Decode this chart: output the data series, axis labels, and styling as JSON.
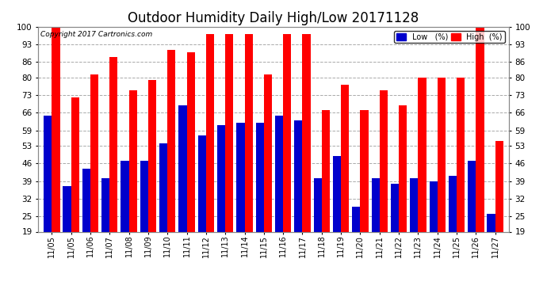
{
  "title": "Outdoor Humidity Daily High/Low 20171128",
  "copyright": "Copyright 2017 Cartronics.com",
  "labels": [
    "11/05",
    "11/05",
    "11/06",
    "11/07",
    "11/08",
    "11/09",
    "11/10",
    "11/11",
    "11/12",
    "11/13",
    "11/14",
    "11/15",
    "11/16",
    "11/17",
    "11/18",
    "11/19",
    "11/20",
    "11/21",
    "11/22",
    "11/23",
    "11/24",
    "11/25",
    "11/26",
    "11/27"
  ],
  "high": [
    100,
    72,
    81,
    88,
    75,
    79,
    91,
    90,
    97,
    97,
    97,
    81,
    97,
    97,
    67,
    77,
    67,
    75,
    69,
    80,
    80,
    80,
    100,
    55
  ],
  "low": [
    65,
    37,
    44,
    40,
    47,
    47,
    54,
    69,
    57,
    61,
    62,
    62,
    65,
    63,
    40,
    49,
    29,
    40,
    38,
    40,
    39,
    41,
    47,
    26
  ],
  "ylim": [
    19,
    100
  ],
  "yticks": [
    19,
    25,
    32,
    39,
    46,
    53,
    59,
    66,
    73,
    80,
    86,
    93,
    100
  ],
  "bar_width": 0.42,
  "high_color": "#ff0000",
  "low_color": "#0000cc",
  "bg_color": "#ffffff",
  "plot_bg_color": "#ffffff",
  "grid_color": "#aaaaaa",
  "title_fontsize": 12,
  "legend_high_label": "High  (%)",
  "legend_low_label": "Low   (%)"
}
